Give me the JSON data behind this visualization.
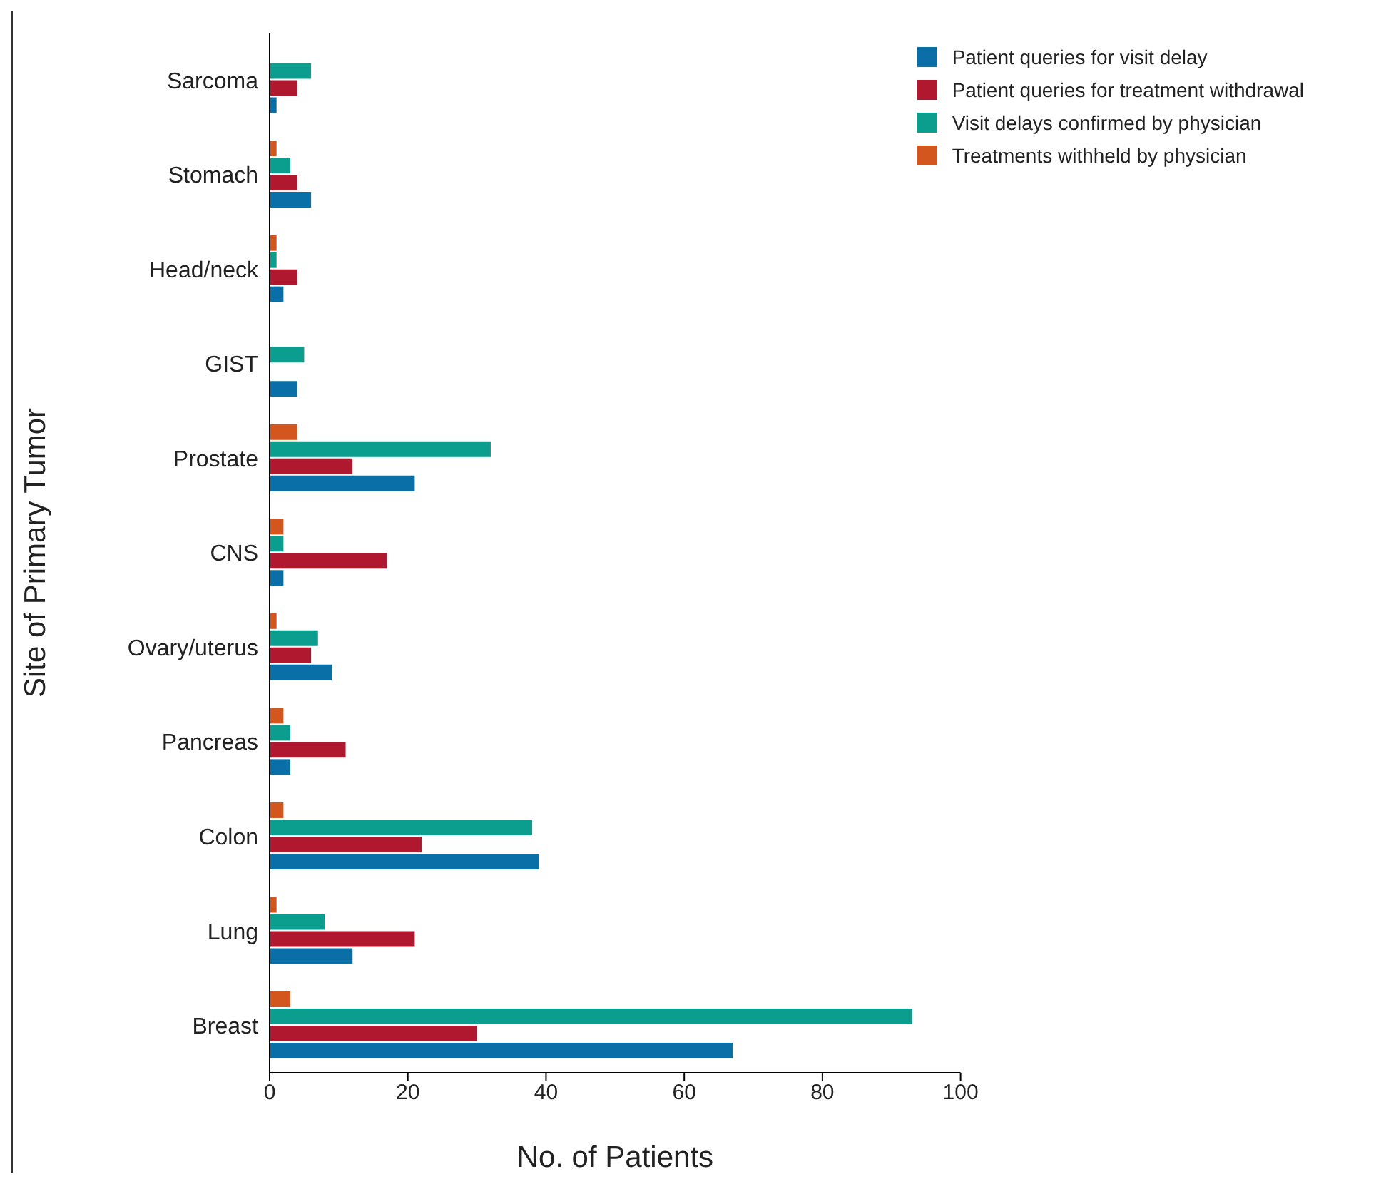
{
  "chart_data": {
    "type": "bar",
    "orientation": "horizontal",
    "xlabel": "No. of Patients",
    "ylabel": "Site of Primary Tumor",
    "categories": [
      "Sarcoma",
      "Stomach",
      "Head/neck",
      "GIST",
      "Prostate",
      "CNS",
      "Ovary/uterus",
      "Pancreas",
      "Colon",
      "Lung",
      "Breast"
    ],
    "series": [
      {
        "name": "Patient queries for visit delay",
        "color": "#0a6fa6",
        "values": [
          1,
          6,
          2,
          4,
          21,
          2,
          9,
          3,
          39,
          12,
          67
        ]
      },
      {
        "name": "Patient queries for treatment withdrawal",
        "color": "#b0182f",
        "values": [
          4,
          4,
          4,
          0,
          12,
          17,
          6,
          11,
          22,
          21,
          30
        ]
      },
      {
        "name": "Visit delays confirmed by physician",
        "color": "#0b9e8e",
        "values": [
          6,
          3,
          1,
          5,
          32,
          2,
          7,
          3,
          38,
          8,
          93
        ]
      },
      {
        "name": "Treatments withheld by physician",
        "color": "#d2561e",
        "values": [
          0,
          1,
          1,
          0,
          4,
          2,
          1,
          2,
          2,
          1,
          3
        ]
      }
    ],
    "xlim": [
      0,
      100
    ],
    "xticks": [
      0,
      20,
      40,
      60,
      80,
      100
    ],
    "grid": false,
    "legend": "top right"
  }
}
